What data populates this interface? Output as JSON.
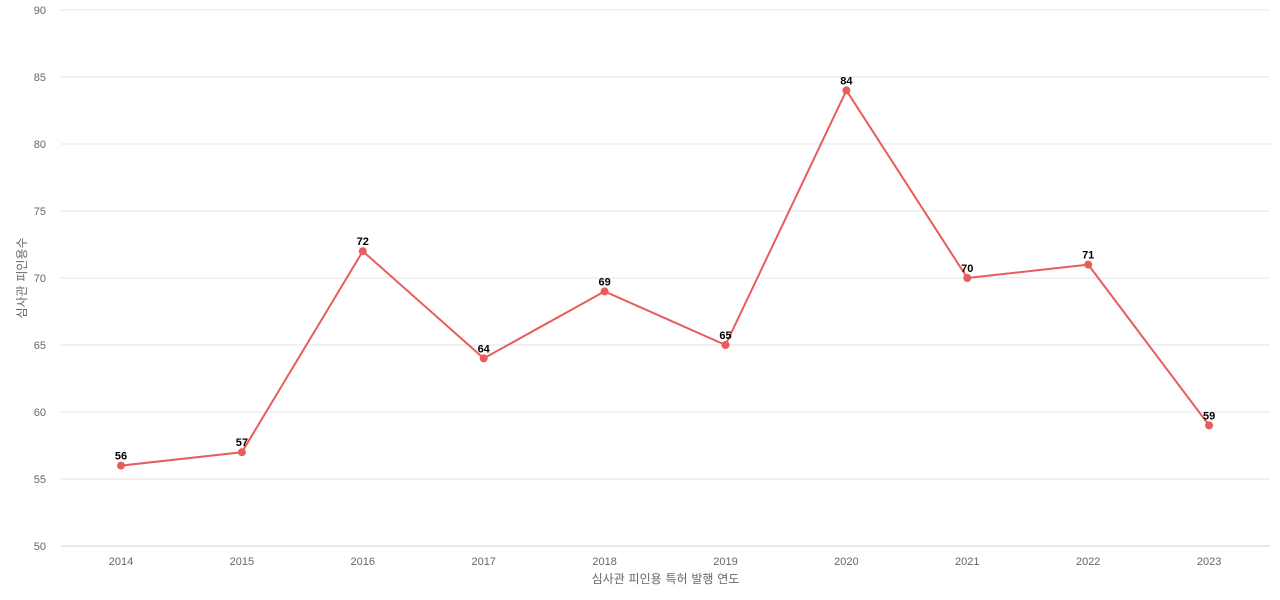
{
  "chart_data": {
    "type": "line",
    "title": "",
    "xlabel": "심사관 피인용 특허 발행 연도",
    "ylabel": "심사관 피인용수",
    "categories": [
      "2014",
      "2015",
      "2016",
      "2017",
      "2018",
      "2019",
      "2020",
      "2021",
      "2022",
      "2023"
    ],
    "series": [
      {
        "values": [
          56,
          57,
          72,
          64,
          69,
          65,
          84,
          70,
          71,
          59
        ],
        "color": "#e85c5c"
      }
    ],
    "ylim": [
      50,
      90
    ],
    "yticks": [
      50,
      55,
      60,
      65,
      70,
      75,
      80,
      85,
      90
    ],
    "grid": true,
    "legend": "none",
    "data_labels": true
  }
}
